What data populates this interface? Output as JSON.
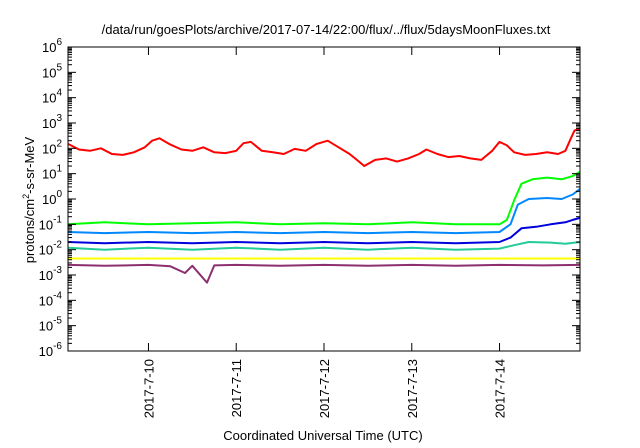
{
  "chart_data": {
    "type": "line",
    "title": "/data/run/goesPlots/archive/2017-07-14/22:00/flux/../flux/5daysMoonFluxes.txt",
    "xlabel": "Coordinated Universal Time (UTC)",
    "ylabel": {
      "prefix": "protons/cm",
      "sup": "2",
      "suffix": "-s-sr-MeV"
    },
    "x_scale": "time",
    "xlim": [
      "2017-07-09T02:00",
      "2017-07-14T22:00"
    ],
    "x_ticks": [
      {
        "label": "2017-7-10",
        "value": "2017-07-10T00:00"
      },
      {
        "label": "2017-7-11",
        "value": "2017-07-11T00:00"
      },
      {
        "label": "2017-7-12",
        "value": "2017-07-12T00:00"
      },
      {
        "label": "2017-7-13",
        "value": "2017-07-13T00:00"
      },
      {
        "label": "2017-7-14",
        "value": "2017-07-14T00:00"
      }
    ],
    "y_scale": "log",
    "ylim": [
      1e-06,
      1000000.0
    ],
    "y_ticks": [
      {
        "base": "10",
        "exp": "-6",
        "value": 1e-06
      },
      {
        "base": "10",
        "exp": "-5",
        "value": 1e-05
      },
      {
        "base": "10",
        "exp": "-4",
        "value": 0.0001
      },
      {
        "base": "10",
        "exp": "-3",
        "value": 0.001
      },
      {
        "base": "10",
        "exp": "-2",
        "value": 0.01
      },
      {
        "base": "10",
        "exp": "-1",
        "value": 0.1
      },
      {
        "base": "10",
        "exp": "0",
        "value": 1
      },
      {
        "base": "10",
        "exp": "1",
        "value": 10
      },
      {
        "base": "10",
        "exp": "2",
        "value": 100
      },
      {
        "base": "10",
        "exp": "3",
        "value": 1000
      },
      {
        "base": "10",
        "exp": "4",
        "value": 10000
      },
      {
        "base": "10",
        "exp": "5",
        "value": 100000
      },
      {
        "base": "10",
        "exp": "6",
        "value": 1000000
      }
    ],
    "grid": false,
    "legend": "none",
    "series": [
      {
        "color": "#ff0000",
        "points": [
          [
            "2017-07-09T02:00",
            150
          ],
          [
            "2017-07-09T05:00",
            90
          ],
          [
            "2017-07-09T08:00",
            80
          ],
          [
            "2017-07-09T11:00",
            100
          ],
          [
            "2017-07-09T14:00",
            60
          ],
          [
            "2017-07-09T17:00",
            55
          ],
          [
            "2017-07-09T20:00",
            70
          ],
          [
            "2017-07-09T23:00",
            110
          ],
          [
            "2017-07-10T01:00",
            200
          ],
          [
            "2017-07-10T03:00",
            250
          ],
          [
            "2017-07-10T06:00",
            140
          ],
          [
            "2017-07-10T09:00",
            90
          ],
          [
            "2017-07-10T12:00",
            80
          ],
          [
            "2017-07-10T15:00",
            110
          ],
          [
            "2017-07-10T18:00",
            70
          ],
          [
            "2017-07-10T21:00",
            65
          ],
          [
            "2017-07-11T00:00",
            80
          ],
          [
            "2017-07-11T02:00",
            160
          ],
          [
            "2017-07-11T04:00",
            180
          ],
          [
            "2017-07-11T07:00",
            80
          ],
          [
            "2017-07-11T10:00",
            70
          ],
          [
            "2017-07-11T13:00",
            60
          ],
          [
            "2017-07-11T16:00",
            95
          ],
          [
            "2017-07-11T19:00",
            80
          ],
          [
            "2017-07-11T22:00",
            150
          ],
          [
            "2017-07-12T01:00",
            200
          ],
          [
            "2017-07-12T04:00",
            110
          ],
          [
            "2017-07-12T07:00",
            60
          ],
          [
            "2017-07-12T09:00",
            35
          ],
          [
            "2017-07-12T11:00",
            20
          ],
          [
            "2017-07-12T14:00",
            35
          ],
          [
            "2017-07-12T17:00",
            40
          ],
          [
            "2017-07-12T20:00",
            30
          ],
          [
            "2017-07-12T23:00",
            40
          ],
          [
            "2017-07-13T02:00",
            60
          ],
          [
            "2017-07-13T04:00",
            90
          ],
          [
            "2017-07-13T07:00",
            60
          ],
          [
            "2017-07-13T10:00",
            45
          ],
          [
            "2017-07-13T13:00",
            50
          ],
          [
            "2017-07-13T16:00",
            40
          ],
          [
            "2017-07-13T19:00",
            35
          ],
          [
            "2017-07-13T22:00",
            80
          ],
          [
            "2017-07-14T00:00",
            180
          ],
          [
            "2017-07-14T02:00",
            130
          ],
          [
            "2017-07-14T04:00",
            70
          ],
          [
            "2017-07-14T07:00",
            55
          ],
          [
            "2017-07-14T10:00",
            60
          ],
          [
            "2017-07-14T13:00",
            70
          ],
          [
            "2017-07-14T16:00",
            60
          ],
          [
            "2017-07-14T18:00",
            80
          ],
          [
            "2017-07-14T19:30",
            250
          ],
          [
            "2017-07-14T20:30",
            500
          ],
          [
            "2017-07-14T22:00",
            600
          ]
        ]
      },
      {
        "color": "#00ff00",
        "points": [
          [
            "2017-07-09T02:00",
            0.1
          ],
          [
            "2017-07-09T12:00",
            0.12
          ],
          [
            "2017-07-10T00:00",
            0.1
          ],
          [
            "2017-07-10T12:00",
            0.11
          ],
          [
            "2017-07-11T00:00",
            0.12
          ],
          [
            "2017-07-11T12:00",
            0.1
          ],
          [
            "2017-07-12T00:00",
            0.11
          ],
          [
            "2017-07-12T12:00",
            0.1
          ],
          [
            "2017-07-13T00:00",
            0.12
          ],
          [
            "2017-07-13T12:00",
            0.1
          ],
          [
            "2017-07-14T00:00",
            0.1
          ],
          [
            "2017-07-14T02:00",
            0.15
          ],
          [
            "2017-07-14T04:00",
            0.9
          ],
          [
            "2017-07-14T06:00",
            4
          ],
          [
            "2017-07-14T09:00",
            6
          ],
          [
            "2017-07-14T13:00",
            7
          ],
          [
            "2017-07-14T17:00",
            6
          ],
          [
            "2017-07-14T20:00",
            8
          ],
          [
            "2017-07-14T22:00",
            12
          ]
        ]
      },
      {
        "color": "#0088ff",
        "points": [
          [
            "2017-07-09T02:00",
            0.05
          ],
          [
            "2017-07-09T12:00",
            0.045
          ],
          [
            "2017-07-10T00:00",
            0.05
          ],
          [
            "2017-07-10T12:00",
            0.045
          ],
          [
            "2017-07-11T00:00",
            0.05
          ],
          [
            "2017-07-11T12:00",
            0.045
          ],
          [
            "2017-07-12T00:00",
            0.05
          ],
          [
            "2017-07-12T12:00",
            0.045
          ],
          [
            "2017-07-13T00:00",
            0.05
          ],
          [
            "2017-07-13T12:00",
            0.045
          ],
          [
            "2017-07-14T00:00",
            0.05
          ],
          [
            "2017-07-14T03:00",
            0.1
          ],
          [
            "2017-07-14T05:00",
            0.6
          ],
          [
            "2017-07-14T08:00",
            1
          ],
          [
            "2017-07-14T13:00",
            1.1
          ],
          [
            "2017-07-14T17:00",
            1
          ],
          [
            "2017-07-14T20:00",
            1.5
          ],
          [
            "2017-07-14T22:00",
            2.5
          ]
        ]
      },
      {
        "color": "#0000dd",
        "points": [
          [
            "2017-07-09T02:00",
            0.02
          ],
          [
            "2017-07-09T12:00",
            0.018
          ],
          [
            "2017-07-10T00:00",
            0.02
          ],
          [
            "2017-07-10T12:00",
            0.018
          ],
          [
            "2017-07-11T00:00",
            0.02
          ],
          [
            "2017-07-11T12:00",
            0.018
          ],
          [
            "2017-07-12T00:00",
            0.02
          ],
          [
            "2017-07-12T12:00",
            0.018
          ],
          [
            "2017-07-13T00:00",
            0.02
          ],
          [
            "2017-07-13T12:00",
            0.018
          ],
          [
            "2017-07-14T00:00",
            0.02
          ],
          [
            "2017-07-14T03:00",
            0.03
          ],
          [
            "2017-07-14T06:00",
            0.07
          ],
          [
            "2017-07-14T10:00",
            0.08
          ],
          [
            "2017-07-14T14:00",
            0.1
          ],
          [
            "2017-07-14T18:00",
            0.12
          ],
          [
            "2017-07-14T20:00",
            0.15
          ],
          [
            "2017-07-14T22:00",
            0.18
          ]
        ]
      },
      {
        "color": "#22cc99",
        "points": [
          [
            "2017-07-09T02:00",
            0.012
          ],
          [
            "2017-07-09T12:00",
            0.01
          ],
          [
            "2017-07-10T00:00",
            0.012
          ],
          [
            "2017-07-10T12:00",
            0.01
          ],
          [
            "2017-07-11T00:00",
            0.012
          ],
          [
            "2017-07-11T12:00",
            0.01
          ],
          [
            "2017-07-12T00:00",
            0.012
          ],
          [
            "2017-07-12T12:00",
            0.01
          ],
          [
            "2017-07-13T00:00",
            0.012
          ],
          [
            "2017-07-13T12:00",
            0.01
          ],
          [
            "2017-07-14T00:00",
            0.011
          ],
          [
            "2017-07-14T04:00",
            0.015
          ],
          [
            "2017-07-14T08:00",
            0.02
          ],
          [
            "2017-07-14T14:00",
            0.019
          ],
          [
            "2017-07-14T18:00",
            0.017
          ],
          [
            "2017-07-14T22:00",
            0.02
          ]
        ]
      },
      {
        "color": "#ffff00",
        "points": [
          [
            "2017-07-09T02:00",
            0.0045
          ],
          [
            "2017-07-10T00:00",
            0.0045
          ],
          [
            "2017-07-11T00:00",
            0.0045
          ],
          [
            "2017-07-12T00:00",
            0.0045
          ],
          [
            "2017-07-13T00:00",
            0.0045
          ],
          [
            "2017-07-14T00:00",
            0.0045
          ],
          [
            "2017-07-14T22:00",
            0.0045
          ]
        ]
      },
      {
        "color": "#8b2f6f",
        "points": [
          [
            "2017-07-09T02:00",
            0.0025
          ],
          [
            "2017-07-09T12:00",
            0.0023
          ],
          [
            "2017-07-10T00:00",
            0.0025
          ],
          [
            "2017-07-10T06:00",
            0.0022
          ],
          [
            "2017-07-10T10:00",
            0.0012
          ],
          [
            "2017-07-10T12:00",
            0.0023
          ],
          [
            "2017-07-10T16:00",
            0.0005
          ],
          [
            "2017-07-10T18:00",
            0.0024
          ],
          [
            "2017-07-11T00:00",
            0.0025
          ],
          [
            "2017-07-11T12:00",
            0.0023
          ],
          [
            "2017-07-12T00:00",
            0.0025
          ],
          [
            "2017-07-12T12:00",
            0.0023
          ],
          [
            "2017-07-13T00:00",
            0.0025
          ],
          [
            "2017-07-13T12:00",
            0.0023
          ],
          [
            "2017-07-14T00:00",
            0.0025
          ],
          [
            "2017-07-14T12:00",
            0.0024
          ],
          [
            "2017-07-14T22:00",
            0.0025
          ]
        ]
      }
    ]
  }
}
